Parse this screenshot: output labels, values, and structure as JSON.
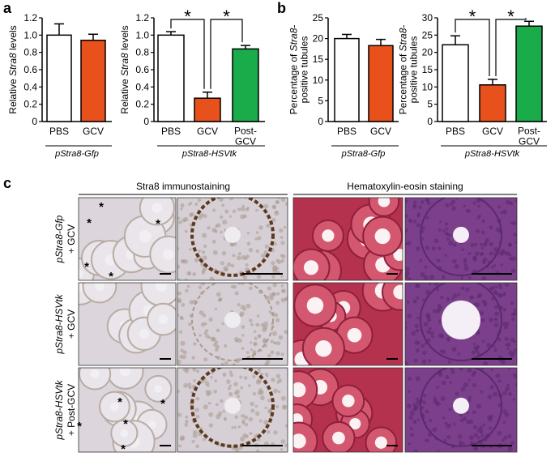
{
  "panel_labels": [
    "a",
    "b",
    "c"
  ],
  "chart_data": [
    {
      "type": "bar",
      "ylabel": "Relative Stra8 levels",
      "categories": [
        "PBS",
        "GCV"
      ],
      "values": [
        1.0,
        0.94
      ],
      "errors": [
        0.13,
        0.07
      ],
      "colors": [
        "#ffffff",
        "#e8501c"
      ],
      "ylim": [
        0,
        1.2
      ],
      "yticks": [
        0,
        0.2,
        0.4,
        0.6,
        0.8,
        {
          "value": 1,
          "label": "1.0"
        },
        1.2
      ],
      "group_label": "pStra8-Gfp"
    },
    {
      "type": "bar",
      "ylabel": "Relative Stra8 levels",
      "categories": [
        "PBS",
        "GCV",
        "Post-GCV"
      ],
      "values": [
        1.0,
        0.27,
        0.84
      ],
      "errors": [
        0.04,
        0.07,
        0.04
      ],
      "colors": [
        "#ffffff",
        "#e8501c",
        "#1aab4b"
      ],
      "ylim": [
        0,
        1.2
      ],
      "yticks": [
        0,
        0.2,
        0.4,
        0.6,
        0.8,
        {
          "value": 1,
          "label": "1.0"
        },
        1.2
      ],
      "group_label": "pStra8-HSVtk",
      "annotations": [
        "*",
        "*"
      ]
    },
    {
      "type": "bar",
      "ylabel": "Percentage of Stra8-positive tubules",
      "categories": [
        "PBS",
        "GCV"
      ],
      "values": [
        20,
        18.3
      ],
      "errors": [
        1,
        1.5
      ],
      "colors": [
        "#ffffff",
        "#e8501c"
      ],
      "ylim": [
        0,
        25
      ],
      "yticks": [
        0,
        5,
        10,
        15,
        20,
        25
      ],
      "group_label": "pStra8-Gfp"
    },
    {
      "type": "bar",
      "ylabel": "Percentage of Stra8-positive tubules",
      "categories": [
        "PBS",
        "GCV",
        "Post-GCV"
      ],
      "values": [
        22.2,
        10.6,
        27.6
      ],
      "errors": [
        2.6,
        1.6,
        1.4
      ],
      "colors": [
        "#ffffff",
        "#e8501c",
        "#1aab4b"
      ],
      "ylim": [
        0,
        30
      ],
      "yticks": [
        0,
        5,
        10,
        15,
        20,
        25,
        30
      ],
      "group_label": "pStra8-HSVtk",
      "annotations": [
        "*",
        "*"
      ]
    }
  ],
  "micrograph": {
    "column_groups": [
      "Stra8 immunostaining",
      "Hematoxylin-eosin staining"
    ],
    "rows": [
      [
        "pStra8-Gfp",
        "+ GCV"
      ],
      [
        "pStra8-HSVtk",
        "+ GCV"
      ],
      [
        "pStra8-HSVtk",
        "+ Post-GCV"
      ]
    ],
    "tubule_mark": "*"
  }
}
